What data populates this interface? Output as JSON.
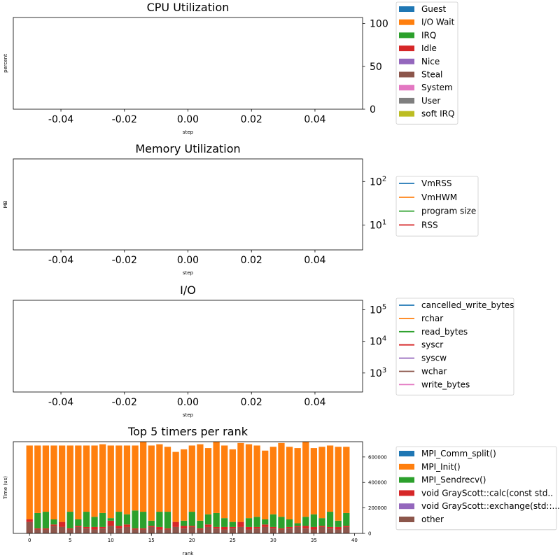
{
  "chart_data": [
    {
      "type": "bar",
      "stacked": true,
      "title": "CPU Utilization",
      "xlabel": "step",
      "ylabel": "percent",
      "xlim": [
        -0.055,
        0.055
      ],
      "ylim": [
        0,
        107
      ],
      "x_ticks": [
        "-0.04",
        "-0.02",
        "0.00",
        "0.02",
        "0.04"
      ],
      "x_tick_values": [
        -0.04,
        -0.02,
        0.0,
        0.02,
        0.04
      ],
      "y_ticks": [
        "0",
        "50",
        "100"
      ],
      "y_tick_values": [
        0,
        50,
        100
      ],
      "y_axis_side": "right",
      "grid": false,
      "legend_placement": "outside-right",
      "series": [
        {
          "name": "Guest",
          "color": "#1f77b4",
          "values": []
        },
        {
          "name": "I/O Wait",
          "color": "#ff7f0e",
          "values": []
        },
        {
          "name": "IRQ",
          "color": "#2ca02c",
          "values": []
        },
        {
          "name": "Idle",
          "color": "#d62728",
          "values": []
        },
        {
          "name": "Nice",
          "color": "#9467bd",
          "values": []
        },
        {
          "name": "Steal",
          "color": "#8c564b",
          "values": []
        },
        {
          "name": "System",
          "color": "#e377c2",
          "values": []
        },
        {
          "name": "User",
          "color": "#7f7f7f",
          "values": []
        },
        {
          "name": "soft IRQ",
          "color": "#bcbd22",
          "values": []
        }
      ]
    },
    {
      "type": "line",
      "title": "Memory Utilization",
      "xlabel": "step",
      "ylabel": "MB",
      "xlim": [
        -0.055,
        0.055
      ],
      "yscale": "log",
      "ylim": [
        2.7,
        330
      ],
      "x_ticks": [
        "-0.04",
        "-0.02",
        "0.00",
        "0.02",
        "0.04"
      ],
      "x_tick_values": [
        -0.04,
        -0.02,
        0.0,
        0.02,
        0.04
      ],
      "y_ticks": [
        {
          "base": "10",
          "exp": "1"
        },
        {
          "base": "10",
          "exp": "2"
        }
      ],
      "y_tick_values": [
        10,
        100
      ],
      "y_axis_side": "right",
      "grid": false,
      "legend_placement": "outside-right",
      "series": [
        {
          "name": "VmRSS",
          "color": "#1f77b4",
          "values": []
        },
        {
          "name": "VmHWM",
          "color": "#ff7f0e",
          "values": []
        },
        {
          "name": "program size",
          "color": "#2ca02c",
          "values": []
        },
        {
          "name": "RSS",
          "color": "#d62728",
          "values": []
        }
      ]
    },
    {
      "type": "line",
      "title": "I/O",
      "xlabel": "step",
      "ylabel": "",
      "xlim": [
        -0.055,
        0.055
      ],
      "yscale": "log",
      "ylim": [
        250,
        200000
      ],
      "x_ticks": [
        "-0.04",
        "-0.02",
        "0.00",
        "0.02",
        "0.04"
      ],
      "x_tick_values": [
        -0.04,
        -0.02,
        0.0,
        0.02,
        0.04
      ],
      "y_ticks": [
        {
          "base": "10",
          "exp": "3"
        },
        {
          "base": "10",
          "exp": "4"
        },
        {
          "base": "10",
          "exp": "5"
        }
      ],
      "y_tick_values": [
        1000,
        10000,
        100000
      ],
      "y_axis_side": "right",
      "grid": false,
      "legend_placement": "outside-right",
      "series": [
        {
          "name": "cancelled_write_bytes",
          "color": "#1f77b4",
          "values": []
        },
        {
          "name": "rchar",
          "color": "#ff7f0e",
          "values": []
        },
        {
          "name": "read_bytes",
          "color": "#2ca02c",
          "values": []
        },
        {
          "name": "syscr",
          "color": "#d62728",
          "values": []
        },
        {
          "name": "syscw",
          "color": "#9467bd",
          "values": []
        },
        {
          "name": "wchar",
          "color": "#8c564b",
          "values": []
        },
        {
          "name": "write_bytes",
          "color": "#e377c2",
          "values": []
        }
      ]
    },
    {
      "type": "bar",
      "stacked": true,
      "title": "Top 5 timers per rank",
      "xlabel": "rank",
      "ylabel": "Time (us)",
      "xlim": [
        -2,
        41
      ],
      "ylim": [
        0,
        720000
      ],
      "x_ticks": [
        "0",
        "5",
        "10",
        "15",
        "20",
        "25",
        "30",
        "35",
        "40"
      ],
      "x_tick_values": [
        0,
        5,
        10,
        15,
        20,
        25,
        30,
        35,
        40
      ],
      "y_ticks": [
        "0",
        "200000",
        "400000",
        "600000"
      ],
      "y_tick_values": [
        0,
        200000,
        400000,
        600000
      ],
      "y_axis_side": "right",
      "grid": false,
      "legend_placement": "outside-right",
      "x": [
        0,
        1,
        2,
        3,
        4,
        5,
        6,
        7,
        8,
        9,
        10,
        11,
        12,
        13,
        14,
        15,
        16,
        17,
        18,
        19,
        20,
        21,
        22,
        23,
        24,
        25,
        26,
        27,
        28,
        29,
        30,
        31,
        32,
        33,
        34,
        35,
        36,
        37,
        38,
        39
      ],
      "series": [
        {
          "name": "other",
          "color": "#8c564b",
          "values": [
            90000,
            30000,
            30000,
            60000,
            50000,
            30000,
            50000,
            40000,
            30000,
            40000,
            60000,
            40000,
            50000,
            30000,
            30000,
            50000,
            30000,
            30000,
            50000,
            40000,
            50000,
            30000,
            50000,
            40000,
            30000,
            40000,
            50000,
            30000,
            40000,
            50000,
            40000,
            30000,
            40000,
            50000,
            40000,
            30000,
            50000,
            40000,
            30000,
            50000
          ]
        },
        {
          "name": "void GrayScott::exchange(std::...",
          "color": "#9467bd",
          "values": [
            0,
            0,
            0,
            0,
            0,
            0,
            0,
            0,
            0,
            0,
            0,
            0,
            0,
            0,
            0,
            0,
            0,
            0,
            0,
            0,
            0,
            0,
            0,
            0,
            0,
            0,
            0,
            0,
            0,
            0,
            0,
            0,
            0,
            0,
            0,
            0,
            0,
            0,
            0,
            0
          ]
        },
        {
          "name": "void GrayScott::calc(const std...",
          "color": "#d62728",
          "values": [
            20000,
            10000,
            10000,
            10000,
            40000,
            10000,
            10000,
            10000,
            20000,
            10000,
            40000,
            20000,
            20000,
            10000,
            10000,
            10000,
            20000,
            10000,
            40000,
            20000,
            10000,
            10000,
            20000,
            10000,
            20000,
            10000,
            40000,
            20000,
            10000,
            20000,
            10000,
            10000,
            10000,
            10000,
            20000,
            20000,
            10000,
            10000,
            20000,
            10000
          ]
        },
        {
          "name": "MPI_Sendrecv()",
          "color": "#2ca02c",
          "values": [
            0,
            120000,
            130000,
            40000,
            0,
            130000,
            50000,
            120000,
            80000,
            110000,
            20000,
            110000,
            80000,
            140000,
            130000,
            40000,
            120000,
            130000,
            0,
            40000,
            110000,
            60000,
            80000,
            110000,
            70000,
            40000,
            0,
            70000,
            80000,
            40000,
            100000,
            90000,
            60000,
            20000,
            70000,
            100000,
            60000,
            120000,
            50000,
            100000
          ]
        },
        {
          "name": "MPI_Init()",
          "color": "#ff7f0e",
          "values": [
            580000,
            530000,
            520000,
            580000,
            600000,
            520000,
            580000,
            520000,
            560000,
            540000,
            570000,
            520000,
            540000,
            510000,
            550000,
            590000,
            530000,
            510000,
            550000,
            560000,
            520000,
            600000,
            520000,
            560000,
            570000,
            570000,
            620000,
            580000,
            560000,
            540000,
            530000,
            580000,
            570000,
            590000,
            590000,
            520000,
            560000,
            520000,
            580000,
            520000
          ]
        },
        {
          "name": "MPI_Comm_split()",
          "color": "#1f77b4",
          "values": [
            0,
            0,
            0,
            0,
            0,
            0,
            0,
            0,
            0,
            0,
            0,
            0,
            0,
            0,
            0,
            0,
            0,
            0,
            0,
            0,
            0,
            0,
            0,
            0,
            0,
            0,
            0,
            0,
            0,
            0,
            0,
            0,
            0,
            0,
            0,
            0,
            0,
            0,
            0,
            0
          ]
        }
      ],
      "legend_order": [
        "MPI_Comm_split()",
        "MPI_Init()",
        "MPI_Sendrecv()",
        "void GrayScott::calc(const std..",
        "void GrayScott::exchange(std::...",
        "other"
      ]
    }
  ]
}
